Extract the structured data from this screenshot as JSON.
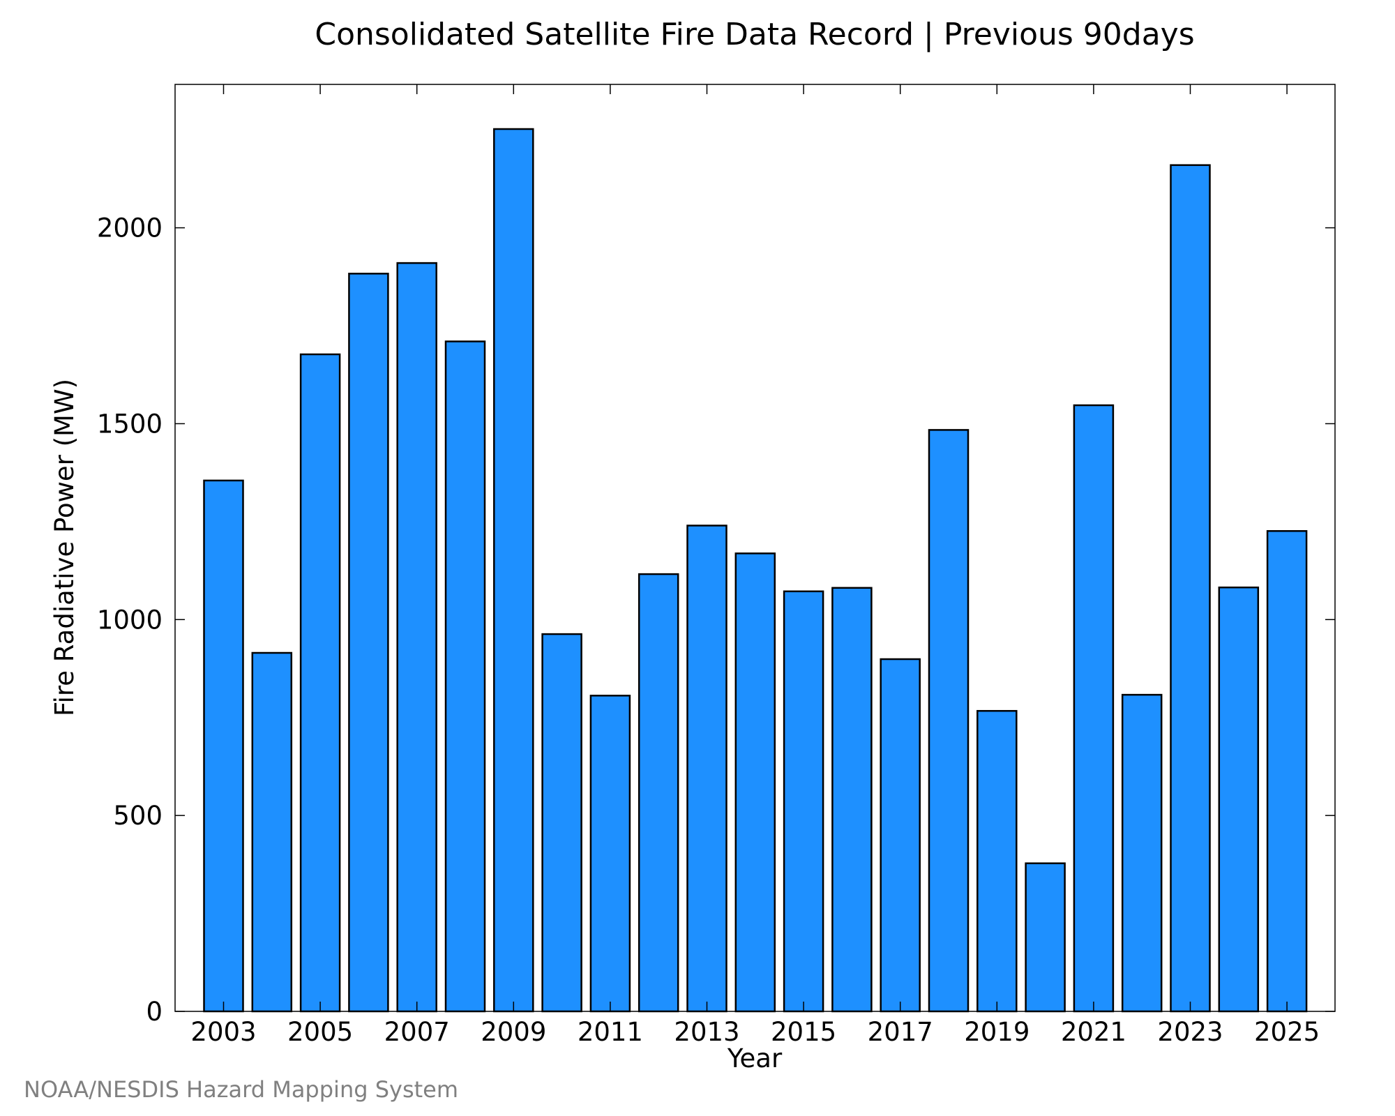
{
  "chart_data": {
    "type": "bar",
    "title": "Consolidated Satellite Fire Data Record | Previous 90days",
    "xlabel": "Year",
    "ylabel": "Fire Radiative Power (MW)",
    "categories": [
      "2003",
      "2004",
      "2005",
      "2006",
      "2007",
      "2008",
      "2009",
      "2010",
      "2011",
      "2012",
      "2013",
      "2014",
      "2015",
      "2016",
      "2017",
      "2018",
      "2019",
      "2020",
      "2021",
      "2022",
      "2023",
      "2024",
      "2025"
    ],
    "values": [
      1355,
      915,
      1677,
      1883,
      1910,
      1710,
      2252,
      963,
      806,
      1116,
      1240,
      1169,
      1072,
      1081,
      899,
      1484,
      767,
      378,
      1547,
      808,
      2160,
      1082,
      1226
    ],
    "x_tick_labels": [
      "2003",
      "2005",
      "2007",
      "2009",
      "2011",
      "2013",
      "2015",
      "2017",
      "2019",
      "2021",
      "2023",
      "2025"
    ],
    "y_ticks": [
      0,
      500,
      1000,
      1500,
      2000
    ],
    "ylim": [
      0,
      2366
    ],
    "grid": false,
    "legend": "none",
    "bar_color": "#1e90ff",
    "bar_edge_color": "#000000"
  },
  "credit": "NOAA/NESDIS Hazard Mapping System"
}
